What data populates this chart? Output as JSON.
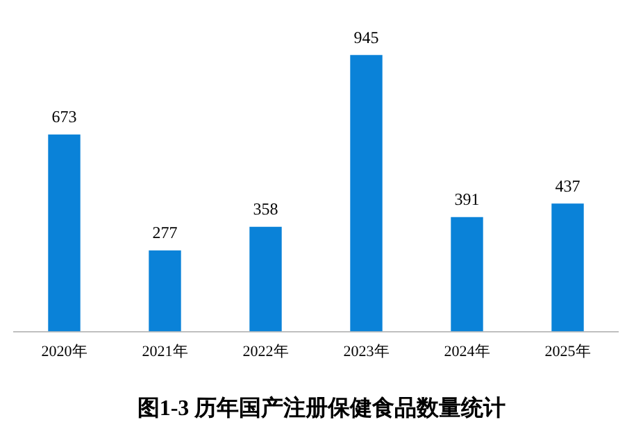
{
  "chart_data": {
    "type": "bar",
    "title": "图1-3 历年国产注册保健食品数量统计",
    "categories": [
      "2020年",
      "2021年",
      "2022年",
      "2023年",
      "2024年",
      "2025年"
    ],
    "values": [
      673,
      277,
      358,
      945,
      391,
      437
    ],
    "color": "#0a82d8",
    "data_labels": true,
    "grid": false,
    "legend": false,
    "tick_labels": "x"
  }
}
